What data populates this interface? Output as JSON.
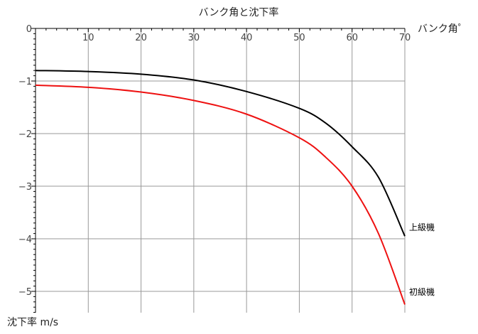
{
  "chart_data": {
    "type": "line",
    "title": "バンク角と沈下率",
    "xlabel": "バンク角゜",
    "ylabel": "沈下率 m/s",
    "xlim": [
      0,
      70
    ],
    "ylim": [
      -5.4,
      0
    ],
    "x_ticks": [
      10,
      20,
      30,
      40,
      50,
      60,
      70
    ],
    "y_ticks": [
      0,
      -1,
      -2,
      -3,
      -4,
      -5
    ],
    "grid": true,
    "series": [
      {
        "name": "上級機",
        "color": "#000000",
        "x": [
          0,
          10,
          20,
          30,
          40,
          50,
          55,
          60,
          65,
          70
        ],
        "y": [
          -0.8,
          -0.82,
          -0.87,
          -0.98,
          -1.2,
          -1.52,
          -1.8,
          -2.25,
          -2.83,
          -3.95
        ]
      },
      {
        "name": "初級機",
        "color": "#ee1111",
        "x": [
          0,
          10,
          20,
          30,
          40,
          50,
          55,
          60,
          65,
          70
        ],
        "y": [
          -1.08,
          -1.12,
          -1.21,
          -1.37,
          -1.63,
          -2.08,
          -2.45,
          -3.0,
          -3.9,
          -5.25
        ]
      }
    ]
  }
}
